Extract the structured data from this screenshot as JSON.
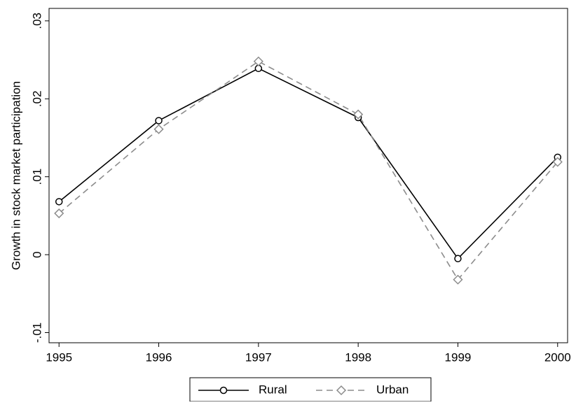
{
  "chart_data": {
    "type": "line",
    "y_label": "Growth in stock market participation",
    "x": [
      1995,
      1996,
      1997,
      1998,
      1999,
      2000
    ],
    "series": [
      {
        "name": "Rural",
        "color": "#000000",
        "marker": "circle",
        "dash": "solid",
        "values": [
          0.0068,
          0.0172,
          0.0239,
          0.0176,
          -0.0005,
          0.0125
        ]
      },
      {
        "name": "Urban",
        "color": "#8c8c8c",
        "marker": "diamond",
        "dash": "dashed",
        "values": [
          0.0053,
          0.0161,
          0.0248,
          0.018,
          -0.0032,
          0.0119
        ]
      }
    ],
    "xlim": [
      1994.9,
      2000.1
    ],
    "xticks": [
      1995,
      1996,
      1997,
      1998,
      1999,
      2000
    ],
    "ylim": [
      -0.0113,
      0.0316
    ],
    "yticks": [
      {
        "value": -0.01,
        "label": "-.01"
      },
      {
        "value": 0,
        "label": "0"
      },
      {
        "value": 0.01,
        "label": ".01"
      },
      {
        "value": 0.02,
        "label": ".02"
      },
      {
        "value": 0.03,
        "label": ".03"
      }
    ],
    "grid": false,
    "legend": "bottom"
  }
}
